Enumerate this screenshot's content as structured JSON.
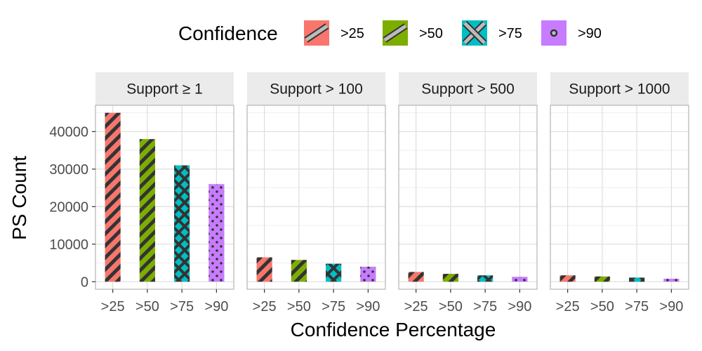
{
  "chart_data": {
    "type": "bar",
    "legend": {
      "title": "Confidence",
      "position": "top",
      "entries": [
        {
          "label": ">25",
          "color": "#F8766D",
          "pattern": "stripe"
        },
        {
          "label": ">50",
          "color": "#7CAE00",
          "pattern": "stripe"
        },
        {
          "label": ">75",
          "color": "#00BFC4",
          "pattern": "crosshatch"
        },
        {
          "label": ">90",
          "color": "#C77CFF",
          "pattern": "dots"
        }
      ]
    },
    "categories": [
      ">25",
      ">50",
      ">75",
      ">90"
    ],
    "xlabel": "Confidence Percentage",
    "ylabel": "PS Count",
    "ylim": [
      -2000,
      47000
    ],
    "yticks": [
      0,
      10000,
      20000,
      30000,
      40000
    ],
    "grid": true,
    "facets": [
      {
        "label": "Support  ≥ 1",
        "values": [
          45000,
          38000,
          31000,
          26000
        ]
      },
      {
        "label": "Support  > 100",
        "values": [
          6500,
          5800,
          4800,
          4000
        ]
      },
      {
        "label": "Support  > 500",
        "values": [
          2600,
          2100,
          1700,
          1300
        ]
      },
      {
        "label": "Support  > 1000",
        "values": [
          1700,
          1400,
          1100,
          800
        ]
      }
    ]
  }
}
